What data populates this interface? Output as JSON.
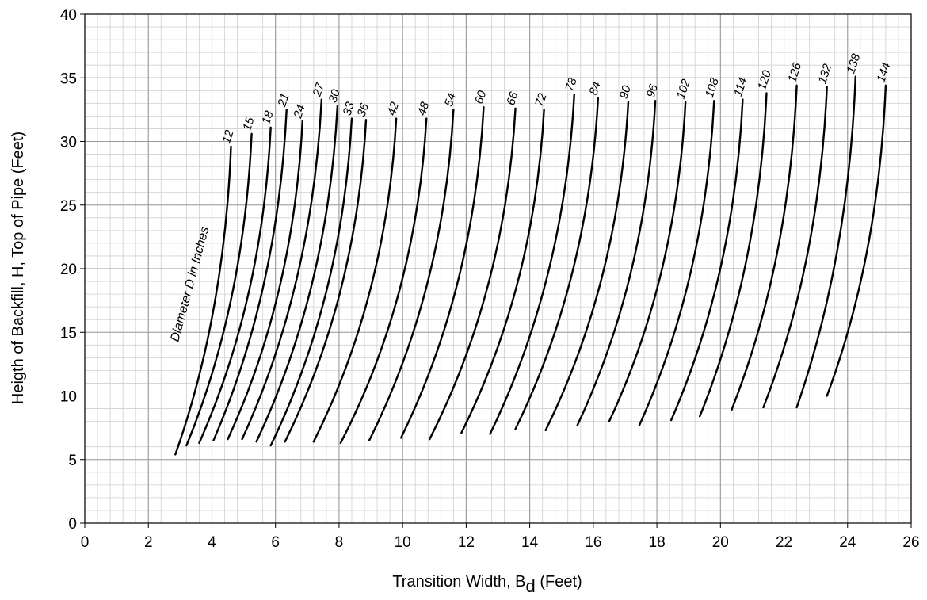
{
  "chart_data": {
    "type": "line",
    "title": "",
    "xlabel_main": "Transition Width, B",
    "xlabel_sub": "d",
    "xlabel_unit": " (Feet)",
    "ylabel": "Heigth of Backfill, H, Top of Pipe (Feet)",
    "xlim": [
      0,
      26
    ],
    "ylim": [
      0,
      40
    ],
    "x_ticks": [
      0,
      2,
      4,
      6,
      8,
      10,
      12,
      14,
      16,
      18,
      20,
      22,
      24,
      26
    ],
    "y_ticks": [
      0,
      5,
      10,
      15,
      20,
      25,
      30,
      35,
      40
    ],
    "minor_grid_x_step": 0.4,
    "minor_grid_y_step": 1,
    "grid": true,
    "annotation": "Diameter D in Inches",
    "colors": {
      "major_grid": "#9a9a9a",
      "minor_grid": "#d0d0d0",
      "curve": "#000000"
    },
    "series": [
      {
        "name": "12",
        "x_start": 2.85,
        "y_start": 5.4,
        "x_end": 4.6,
        "y_end": 29.6
      },
      {
        "name": "15",
        "x_start": 3.2,
        "y_start": 6.1,
        "x_end": 5.25,
        "y_end": 30.6
      },
      {
        "name": "18",
        "x_start": 3.6,
        "y_start": 6.3,
        "x_end": 5.85,
        "y_end": 31.1
      },
      {
        "name": "21",
        "x_start": 4.05,
        "y_start": 6.5,
        "x_end": 6.35,
        "y_end": 32.5
      },
      {
        "name": "24",
        "x_start": 4.5,
        "y_start": 6.6,
        "x_end": 6.85,
        "y_end": 31.6
      },
      {
        "name": "27",
        "x_start": 4.95,
        "y_start": 6.6,
        "x_end": 7.45,
        "y_end": 33.3
      },
      {
        "name": "30",
        "x_start": 5.4,
        "y_start": 6.4,
        "x_end": 7.95,
        "y_end": 32.8
      },
      {
        "name": "33",
        "x_start": 5.85,
        "y_start": 6.1,
        "x_end": 8.4,
        "y_end": 31.8
      },
      {
        "name": "36",
        "x_start": 6.3,
        "y_start": 6.4,
        "x_end": 8.85,
        "y_end": 31.7
      },
      {
        "name": "42",
        "x_start": 7.2,
        "y_start": 6.4,
        "x_end": 9.8,
        "y_end": 31.8
      },
      {
        "name": "48",
        "x_start": 8.05,
        "y_start": 6.3,
        "x_end": 10.75,
        "y_end": 31.8
      },
      {
        "name": "54",
        "x_start": 8.95,
        "y_start": 6.5,
        "x_end": 11.6,
        "y_end": 32.5
      },
      {
        "name": "60",
        "x_start": 9.95,
        "y_start": 6.7,
        "x_end": 12.55,
        "y_end": 32.7
      },
      {
        "name": "66",
        "x_start": 10.85,
        "y_start": 6.6,
        "x_end": 13.55,
        "y_end": 32.6
      },
      {
        "name": "72",
        "x_start": 11.85,
        "y_start": 7.1,
        "x_end": 14.45,
        "y_end": 32.5
      },
      {
        "name": "78",
        "x_start": 12.75,
        "y_start": 7.0,
        "x_end": 15.4,
        "y_end": 33.7
      },
      {
        "name": "84",
        "x_start": 13.55,
        "y_start": 7.4,
        "x_end": 16.15,
        "y_end": 33.4
      },
      {
        "name": "90",
        "x_start": 14.5,
        "y_start": 7.3,
        "x_end": 17.1,
        "y_end": 33.1
      },
      {
        "name": "96",
        "x_start": 15.5,
        "y_start": 7.7,
        "x_end": 17.95,
        "y_end": 33.2
      },
      {
        "name": "102",
        "x_start": 16.5,
        "y_start": 8.0,
        "x_end": 18.9,
        "y_end": 33.1
      },
      {
        "name": "108",
        "x_start": 17.45,
        "y_start": 7.7,
        "x_end": 19.8,
        "y_end": 33.2
      },
      {
        "name": "114",
        "x_start": 18.45,
        "y_start": 8.1,
        "x_end": 20.7,
        "y_end": 33.3
      },
      {
        "name": "120",
        "x_start": 19.35,
        "y_start": 8.4,
        "x_end": 21.45,
        "y_end": 33.8
      },
      {
        "name": "126",
        "x_start": 20.35,
        "y_start": 8.9,
        "x_end": 22.4,
        "y_end": 34.4
      },
      {
        "name": "132",
        "x_start": 21.35,
        "y_start": 9.1,
        "x_end": 23.35,
        "y_end": 34.3
      },
      {
        "name": "138",
        "x_start": 22.4,
        "y_start": 9.1,
        "x_end": 24.25,
        "y_end": 35.1
      },
      {
        "name": "144",
        "x_start": 23.35,
        "y_start": 10.0,
        "x_end": 25.2,
        "y_end": 34.4
      }
    ]
  }
}
